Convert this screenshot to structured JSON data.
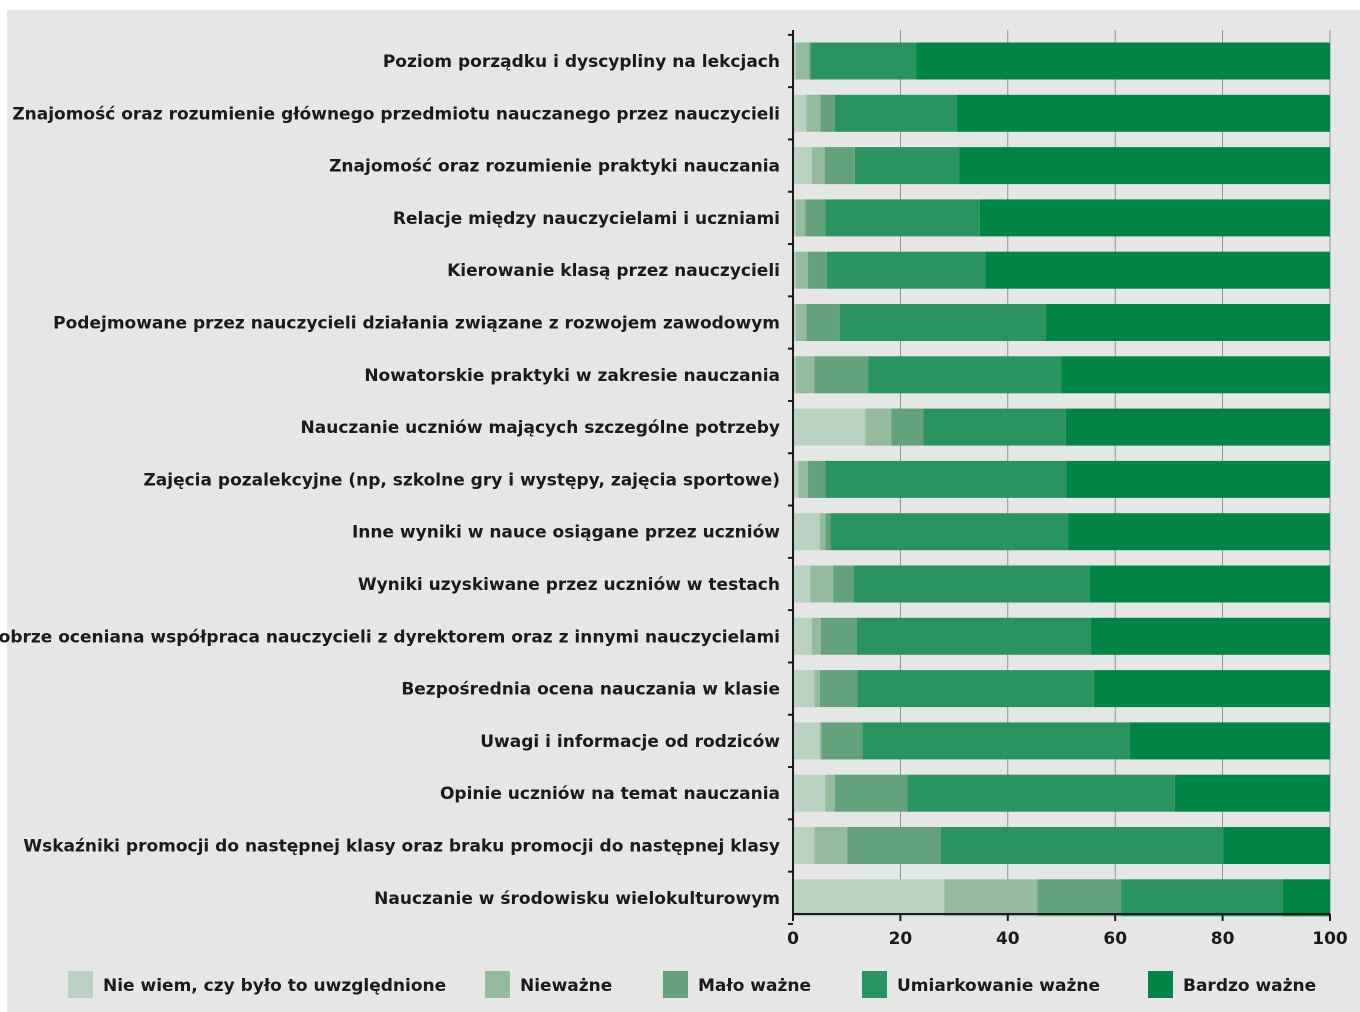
{
  "chart_data": {
    "type": "bar",
    "orientation": "horizontal",
    "stacked": true,
    "title": "",
    "xlabel": "",
    "ylabel": "",
    "xlim": [
      0,
      100
    ],
    "x_ticks": [
      "0",
      "20",
      "40",
      "60",
      "80",
      "100"
    ],
    "grid": "vertical",
    "legend_position": "bottom",
    "categories": [
      "Poziom porządku i dyscypliny na lekcjach",
      "Znajomość oraz rozumienie głównego przedmiotu nauczanego przez nauczycieli",
      "Znajomość oraz rozumienie praktyki nauczania",
      "Relacje między nauczycielami i uczniami",
      "Kierowanie klasą przez nauczycieli",
      "Podejmowane przez nauczycieli działania związane z rozwojem zawodowym",
      "Nowatorskie praktyki w zakresie nauczania",
      "Nauczanie uczniów mających szczególne potrzeby",
      "Zajęcia pozalekcyjne (np, szkolne gry i występy, zajęcia sportowe)",
      "Inne wyniki w nauce osiągane przez uczniów",
      "Wyniki uzyskiwane przez uczniów w testach",
      "Dobrze oceniana współpraca nauczycieli z dyrektorem oraz z innymi nauczycielami",
      "Bezpośrednia ocena nauczania w klasie",
      "Uwagi i informacje od rodziców",
      "Opinie uczniów na temat nauczania",
      "Wskaźniki promocji do następnej klasy oraz braku promocji do następnej klasy",
      "Nauczanie w środowisku wielokulturowym"
    ],
    "series": [
      {
        "name": "Nie wiem, czy było to uwzględnione",
        "color": "#b8d1c0",
        "values": [
          0.5,
          2.5,
          3.5,
          0.5,
          0.5,
          0.5,
          0.5,
          13.5,
          1,
          5,
          3.2,
          3.5,
          4,
          5,
          6,
          4,
          28.2
        ]
      },
      {
        "name": "Nieważne",
        "color": "#94bb9e",
        "values": [
          2.5,
          2.6,
          2.4,
          1.8,
          2.3,
          2,
          3.5,
          4.8,
          1.8,
          1,
          4.3,
          1.7,
          1,
          0.3,
          1.8,
          6.1,
          17.3
        ]
      },
      {
        "name": "Mało ważne",
        "color": "#64a27b",
        "values": [
          0.3,
          2.7,
          5.6,
          3.7,
          3.5,
          6.2,
          10,
          6,
          3.2,
          1,
          3.8,
          6.7,
          7,
          7.6,
          13.5,
          17.4,
          15.6
        ]
      },
      {
        "name": "Umiarkowanie ważne",
        "color": "#2a9461",
        "values": [
          19.7,
          22.7,
          19.5,
          28.8,
          29.5,
          38.4,
          36,
          26.5,
          44.9,
          44.3,
          44,
          43.6,
          44,
          49.8,
          49.8,
          52.6,
          30.1
        ]
      },
      {
        "name": "Bardzo ważne",
        "color": "#008545",
        "values": [
          77,
          69.5,
          69,
          65.2,
          64.2,
          52.9,
          50,
          49.2,
          49.1,
          48.7,
          44.7,
          44.5,
          44,
          37.3,
          28.9,
          19.9,
          8.8
        ]
      }
    ]
  }
}
